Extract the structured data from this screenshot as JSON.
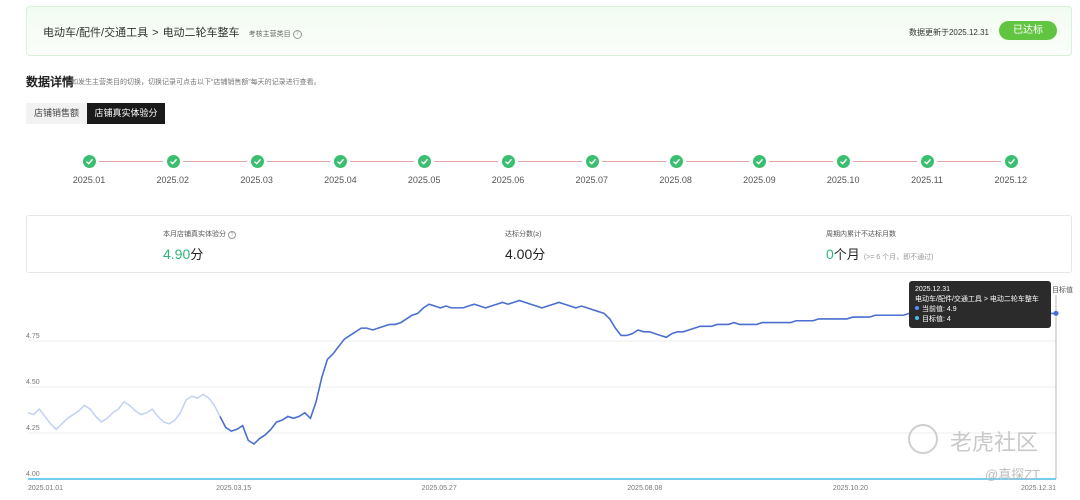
{
  "header": {
    "breadcrumb": [
      "电动车/配件/交通工具",
      "电动二轮车整车"
    ],
    "breadcrumb_sep": ">",
    "category_hint": "考核主营类目",
    "update_text": "数据更新于2025.12.31",
    "status_button": "已达标",
    "accent": "#62c542"
  },
  "section": {
    "title": "数据详情",
    "subtitle": "如发生主营类目的切换，切换记录可点击以下“店铺销售额”每天的记录进行查看。"
  },
  "tabs": [
    {
      "label": "店铺销售额",
      "active": false
    },
    {
      "label": "店铺真实体验分",
      "active": true
    }
  ],
  "timeline": {
    "months": [
      "2025.01",
      "2025.02",
      "2025.03",
      "2025.04",
      "2025.05",
      "2025.06",
      "2025.07",
      "2025.08",
      "2025.09",
      "2025.10",
      "2025.11",
      "2025.12"
    ],
    "node_color": "#3bbf6f",
    "line_color": "#e6a5a5"
  },
  "summary": {
    "current": {
      "label": "本月店铺真实体验分",
      "value": "4.90",
      "unit": "分"
    },
    "target": {
      "label": "达标分数(≥)",
      "value": "4.00",
      "unit": "分"
    },
    "fail": {
      "label": "周期内累计不达标月数",
      "value": "0",
      "unit": "个月",
      "note": "(>= 6 个月，即不通过)"
    }
  },
  "tooltip": {
    "date": "2025.12.31",
    "category": "电动车/配件/交通工具 > 电动二轮车整车",
    "current": "当前值: 4.9",
    "target": "目标值: 4",
    "legend_target": "目标值"
  },
  "watermark": {
    "main": "老虎社区",
    "sub": "@真探ZT"
  },
  "chart_data": {
    "type": "line",
    "x_ticks": [
      "2025.01.01",
      "2025.03.15",
      "2025.05.27",
      "2025.08.08",
      "2025.10.20",
      "2025.12.31"
    ],
    "y_ticks": [
      "4.00",
      "4.25",
      "4.50",
      "4.75"
    ],
    "ylim": [
      4.0,
      5.0
    ],
    "line_color": "#4a6fd1",
    "target_color": "#48bde8",
    "series": [
      {
        "name": "当前值",
        "values": [
          [
            0,
            4.36
          ],
          [
            2,
            4.35
          ],
          [
            4,
            4.38
          ],
          [
            6,
            4.34
          ],
          [
            8,
            4.3
          ],
          [
            10,
            4.27
          ],
          [
            12,
            4.3
          ],
          [
            14,
            4.33
          ],
          [
            16,
            4.35
          ],
          [
            18,
            4.37
          ],
          [
            20,
            4.4
          ],
          [
            22,
            4.38
          ],
          [
            24,
            4.34
          ],
          [
            26,
            4.31
          ],
          [
            28,
            4.33
          ],
          [
            30,
            4.36
          ],
          [
            32,
            4.38
          ],
          [
            34,
            4.42
          ],
          [
            36,
            4.4
          ],
          [
            38,
            4.37
          ],
          [
            40,
            4.35
          ],
          [
            42,
            4.36
          ],
          [
            44,
            4.38
          ],
          [
            46,
            4.34
          ],
          [
            48,
            4.31
          ],
          [
            50,
            4.3
          ],
          [
            52,
            4.32
          ],
          [
            54,
            4.36
          ],
          [
            56,
            4.43
          ],
          [
            58,
            4.45
          ],
          [
            60,
            4.44
          ],
          [
            62,
            4.46
          ],
          [
            64,
            4.44
          ],
          [
            66,
            4.4
          ],
          [
            68,
            4.34
          ],
          [
            70,
            4.28
          ],
          [
            72,
            4.26
          ],
          [
            74,
            4.27
          ],
          [
            76,
            4.29
          ],
          [
            78,
            4.21
          ],
          [
            80,
            4.19
          ],
          [
            82,
            4.22
          ],
          [
            84,
            4.24
          ],
          [
            86,
            4.27
          ],
          [
            88,
            4.31
          ],
          [
            90,
            4.32
          ],
          [
            92,
            4.34
          ],
          [
            94,
            4.33
          ],
          [
            96,
            4.34
          ],
          [
            98,
            4.36
          ],
          [
            100,
            4.33
          ],
          [
            102,
            4.42
          ],
          [
            104,
            4.55
          ],
          [
            106,
            4.65
          ],
          [
            108,
            4.68
          ],
          [
            110,
            4.72
          ],
          [
            112,
            4.76
          ],
          [
            114,
            4.78
          ],
          [
            116,
            4.8
          ],
          [
            118,
            4.82
          ],
          [
            120,
            4.82
          ],
          [
            122,
            4.81
          ],
          [
            124,
            4.82
          ],
          [
            126,
            4.83
          ],
          [
            128,
            4.84
          ],
          [
            130,
            4.84
          ],
          [
            132,
            4.85
          ],
          [
            134,
            4.87
          ],
          [
            136,
            4.89
          ],
          [
            138,
            4.9
          ],
          [
            140,
            4.93
          ],
          [
            142,
            4.95
          ],
          [
            144,
            4.94
          ],
          [
            146,
            4.93
          ],
          [
            148,
            4.94
          ],
          [
            150,
            4.93
          ],
          [
            152,
            4.93
          ],
          [
            154,
            4.93
          ],
          [
            156,
            4.94
          ],
          [
            158,
            4.95
          ],
          [
            160,
            4.94
          ],
          [
            162,
            4.93
          ],
          [
            164,
            4.94
          ],
          [
            166,
            4.95
          ],
          [
            168,
            4.96
          ],
          [
            170,
            4.95
          ],
          [
            172,
            4.96
          ],
          [
            174,
            4.97
          ],
          [
            176,
            4.96
          ],
          [
            178,
            4.95
          ],
          [
            180,
            4.94
          ],
          [
            182,
            4.93
          ],
          [
            184,
            4.94
          ],
          [
            186,
            4.95
          ],
          [
            188,
            4.96
          ],
          [
            190,
            4.95
          ],
          [
            192,
            4.94
          ],
          [
            194,
            4.93
          ],
          [
            196,
            4.94
          ],
          [
            198,
            4.93
          ],
          [
            200,
            4.92
          ],
          [
            202,
            4.91
          ],
          [
            204,
            4.9
          ],
          [
            206,
            4.87
          ],
          [
            208,
            4.82
          ],
          [
            210,
            4.78
          ],
          [
            212,
            4.78
          ],
          [
            214,
            4.79
          ],
          [
            216,
            4.81
          ],
          [
            218,
            4.8
          ],
          [
            220,
            4.8
          ],
          [
            222,
            4.79
          ],
          [
            224,
            4.78
          ],
          [
            226,
            4.77
          ],
          [
            228,
            4.79
          ],
          [
            230,
            4.8
          ],
          [
            232,
            4.8
          ],
          [
            234,
            4.81
          ],
          [
            236,
            4.82
          ],
          [
            238,
            4.83
          ],
          [
            240,
            4.83
          ],
          [
            242,
            4.83
          ],
          [
            244,
            4.84
          ],
          [
            246,
            4.84
          ],
          [
            248,
            4.84
          ],
          [
            250,
            4.85
          ],
          [
            252,
            4.84
          ],
          [
            254,
            4.84
          ],
          [
            256,
            4.84
          ],
          [
            258,
            4.84
          ],
          [
            260,
            4.85
          ],
          [
            262,
            4.85
          ],
          [
            264,
            4.85
          ],
          [
            266,
            4.85
          ],
          [
            268,
            4.85
          ],
          [
            270,
            4.85
          ],
          [
            272,
            4.86
          ],
          [
            274,
            4.86
          ],
          [
            276,
            4.86
          ],
          [
            278,
            4.86
          ],
          [
            280,
            4.87
          ],
          [
            282,
            4.87
          ],
          [
            284,
            4.87
          ],
          [
            286,
            4.87
          ],
          [
            288,
            4.87
          ],
          [
            290,
            4.87
          ],
          [
            292,
            4.88
          ],
          [
            294,
            4.88
          ],
          [
            296,
            4.88
          ],
          [
            298,
            4.88
          ],
          [
            300,
            4.89
          ],
          [
            302,
            4.89
          ],
          [
            304,
            4.89
          ],
          [
            306,
            4.89
          ],
          [
            308,
            4.89
          ],
          [
            310,
            4.89
          ],
          [
            312,
            4.9
          ],
          [
            314,
            4.9
          ],
          [
            316,
            4.9
          ],
          [
            318,
            4.9
          ],
          [
            320,
            4.9
          ],
          [
            322,
            4.9
          ],
          [
            324,
            4.9
          ],
          [
            326,
            4.9
          ],
          [
            328,
            4.9
          ],
          [
            330,
            4.9
          ],
          [
            332,
            4.9
          ],
          [
            334,
            4.9
          ],
          [
            336,
            4.9
          ],
          [
            338,
            4.9
          ],
          [
            340,
            4.9
          ],
          [
            342,
            4.9
          ],
          [
            344,
            4.9
          ],
          [
            346,
            4.9
          ],
          [
            348,
            4.9
          ],
          [
            350,
            4.9
          ],
          [
            352,
            4.9
          ],
          [
            354,
            4.9
          ],
          [
            356,
            4.89
          ],
          [
            358,
            4.9
          ],
          [
            360,
            4.9
          ],
          [
            362,
            4.9
          ],
          [
            364,
            4.9
          ]
        ]
      },
      {
        "name": "目标值",
        "values": [
          [
            0,
            4.0
          ],
          [
            364,
            4.0
          ]
        ]
      }
    ]
  }
}
